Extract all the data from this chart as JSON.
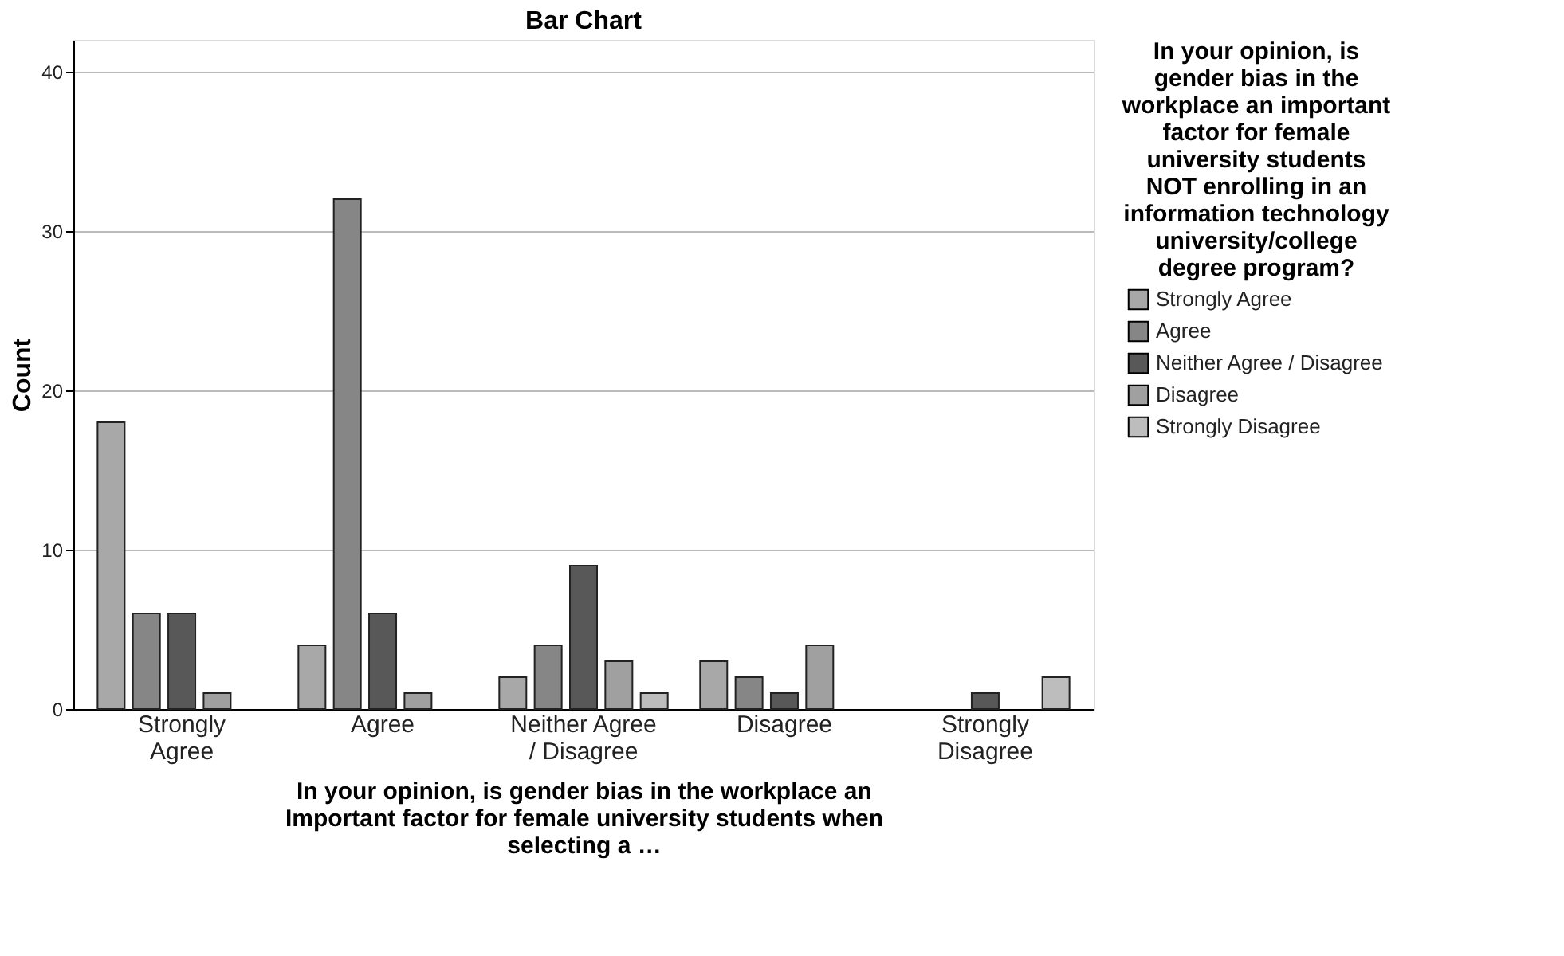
{
  "chart_data": {
    "type": "bar",
    "title": "Bar Chart",
    "xlabel": "In your opinion, is gender bias in the workplace an Important factor for female university students when selecting a …",
    "ylabel": "Count",
    "legend_title": "In your opinion, is gender bias in the workplace an important factor for female university students NOT enrolling in an information technology university/college degree program?",
    "categories": [
      "Strongly Agree",
      "Agree",
      "Neither Agree / Disagree",
      "Disagree",
      "Strongly Disagree"
    ],
    "series": [
      {
        "name": "Strongly Agree",
        "color": "#a8a8a8",
        "values": [
          18,
          4,
          2,
          3,
          null
        ]
      },
      {
        "name": "Agree",
        "color": "#868686",
        "values": [
          6,
          32,
          4,
          2,
          null
        ]
      },
      {
        "name": "Neither Agree / Disagree",
        "color": "#585858",
        "values": [
          6,
          6,
          9,
          1,
          1
        ]
      },
      {
        "name": "Disagree",
        "color": "#a0a0a0",
        "values": [
          1,
          1,
          3,
          4,
          null
        ]
      },
      {
        "name": "Strongly Disagree",
        "color": "#bdbdbd",
        "values": [
          null,
          null,
          1,
          null,
          2
        ]
      }
    ],
    "ylim": [
      0,
      42
    ],
    "yticks": [
      0,
      10,
      20,
      30,
      40
    ],
    "grid": "y",
    "legend": "right"
  }
}
